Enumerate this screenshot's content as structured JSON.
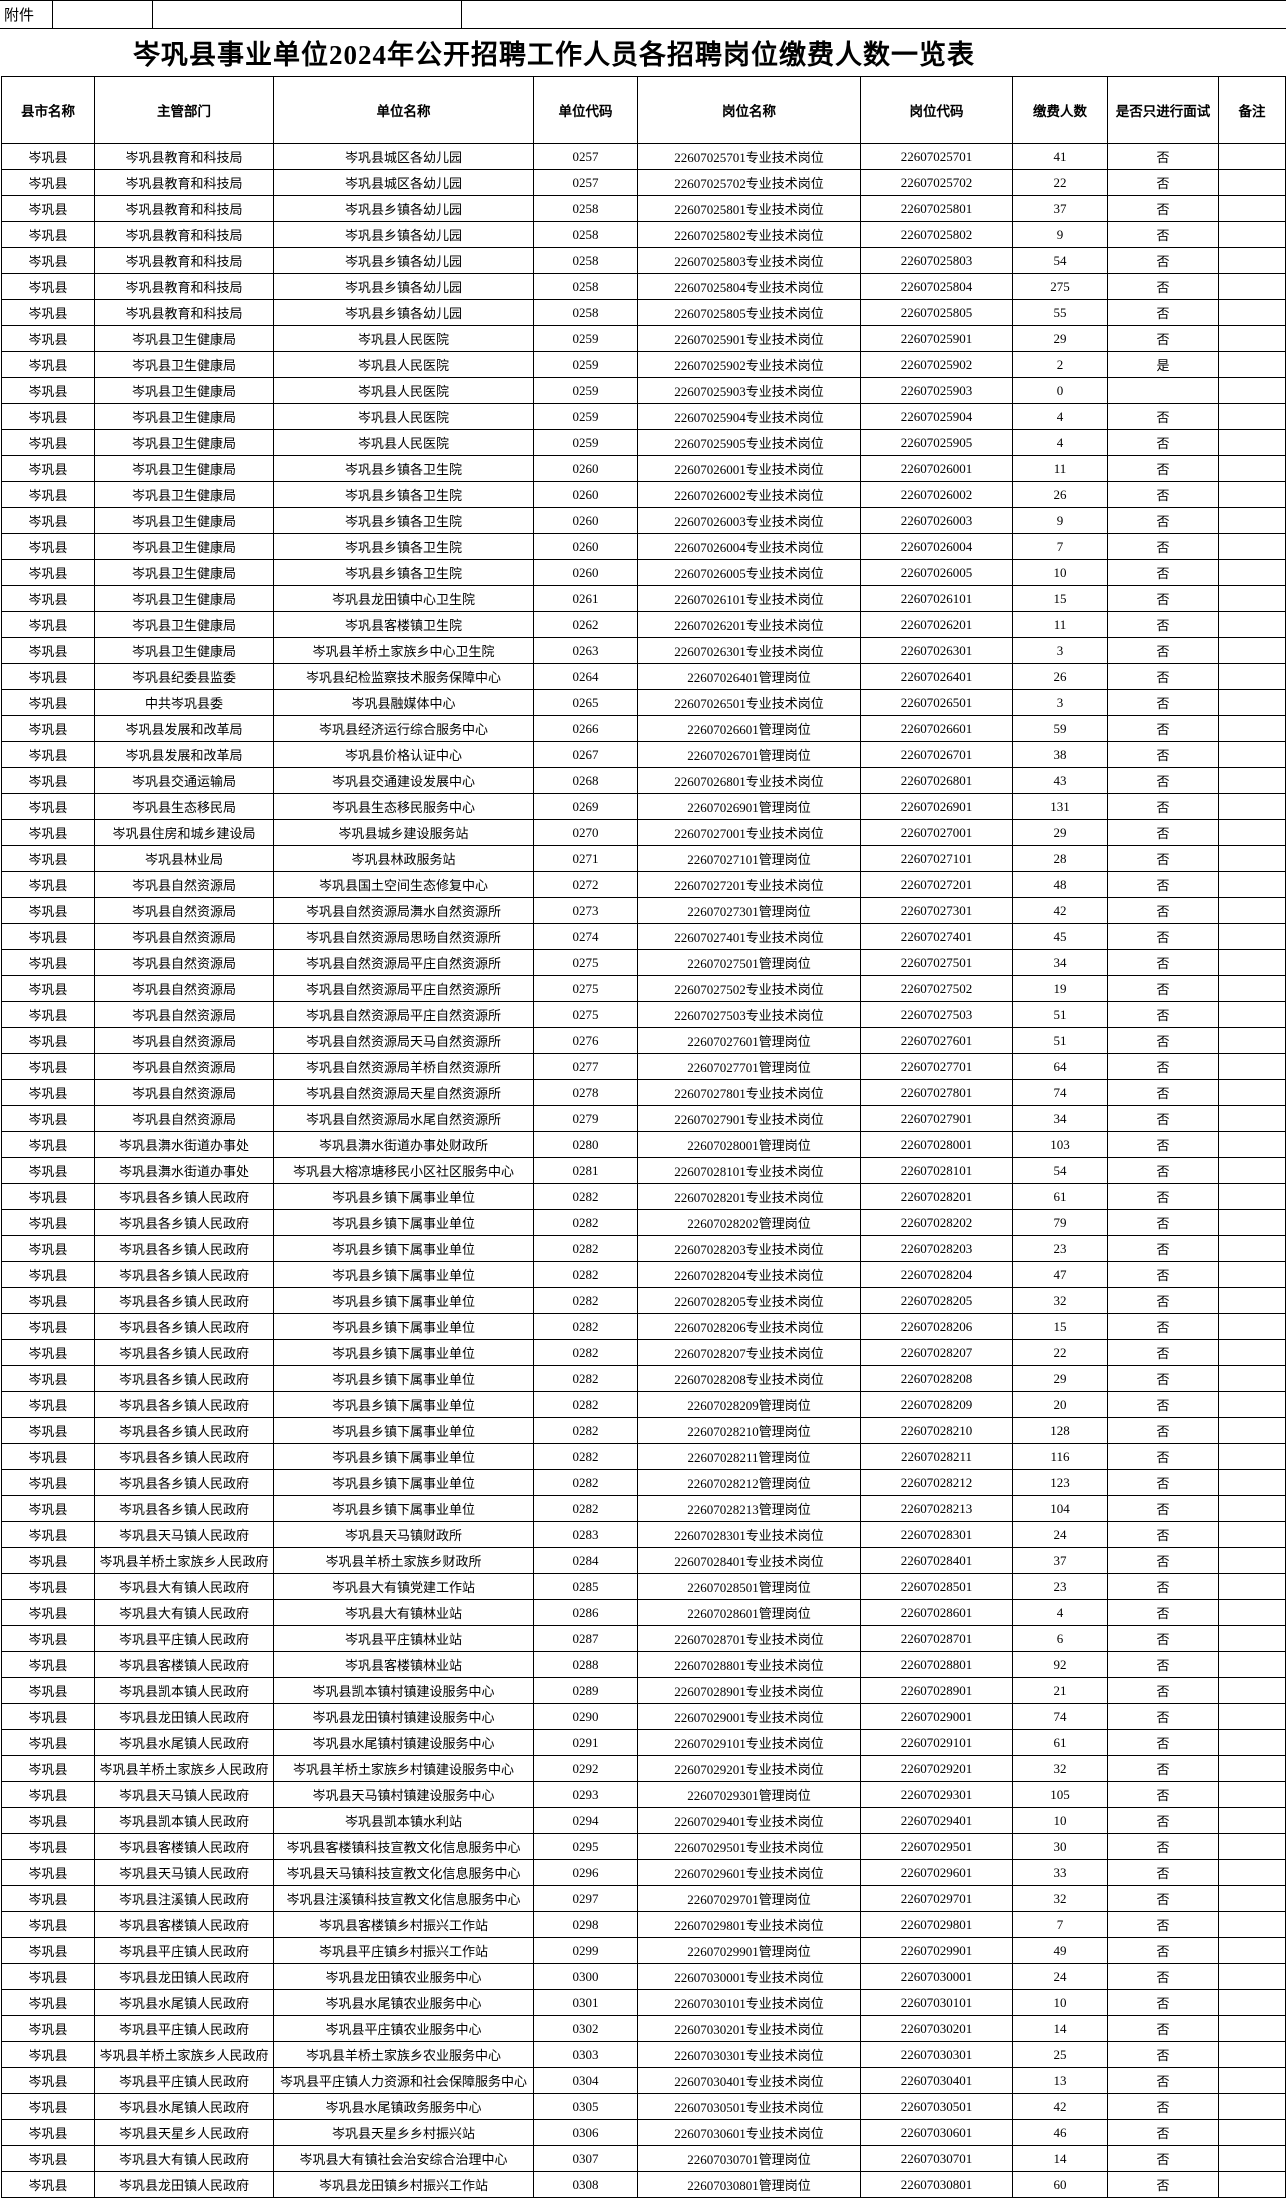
{
  "attachment_label": "附件",
  "title": "岑巩县事业单位2024年公开招聘工作人员各招聘岗位缴费人数一览表",
  "table": {
    "headers": [
      "县市名称",
      "主管部门",
      "单位名称",
      "单位代码",
      "岗位名称",
      "岗位代码",
      "缴费人数",
      "是否只进行面试",
      "备注"
    ],
    "rows": [
      [
        "岑巩县",
        "岑巩县教育和科技局",
        "岑巩县城区各幼儿园",
        "0257",
        "22607025701专业技术岗位",
        "22607025701",
        "41",
        "否",
        ""
      ],
      [
        "岑巩县",
        "岑巩县教育和科技局",
        "岑巩县城区各幼儿园",
        "0257",
        "22607025702专业技术岗位",
        "22607025702",
        "22",
        "否",
        ""
      ],
      [
        "岑巩县",
        "岑巩县教育和科技局",
        "岑巩县乡镇各幼儿园",
        "0258",
        "22607025801专业技术岗位",
        "22607025801",
        "37",
        "否",
        ""
      ],
      [
        "岑巩县",
        "岑巩县教育和科技局",
        "岑巩县乡镇各幼儿园",
        "0258",
        "22607025802专业技术岗位",
        "22607025802",
        "9",
        "否",
        ""
      ],
      [
        "岑巩县",
        "岑巩县教育和科技局",
        "岑巩县乡镇各幼儿园",
        "0258",
        "22607025803专业技术岗位",
        "22607025803",
        "54",
        "否",
        ""
      ],
      [
        "岑巩县",
        "岑巩县教育和科技局",
        "岑巩县乡镇各幼儿园",
        "0258",
        "22607025804专业技术岗位",
        "22607025804",
        "275",
        "否",
        ""
      ],
      [
        "岑巩县",
        "岑巩县教育和科技局",
        "岑巩县乡镇各幼儿园",
        "0258",
        "22607025805专业技术岗位",
        "22607025805",
        "55",
        "否",
        ""
      ],
      [
        "岑巩县",
        "岑巩县卫生健康局",
        "岑巩县人民医院",
        "0259",
        "22607025901专业技术岗位",
        "22607025901",
        "29",
        "否",
        ""
      ],
      [
        "岑巩县",
        "岑巩县卫生健康局",
        "岑巩县人民医院",
        "0259",
        "22607025902专业技术岗位",
        "22607025902",
        "2",
        "是",
        ""
      ],
      [
        "岑巩县",
        "岑巩县卫生健康局",
        "岑巩县人民医院",
        "0259",
        "22607025903专业技术岗位",
        "22607025903",
        "0",
        "",
        ""
      ],
      [
        "岑巩县",
        "岑巩县卫生健康局",
        "岑巩县人民医院",
        "0259",
        "22607025904专业技术岗位",
        "22607025904",
        "4",
        "否",
        ""
      ],
      [
        "岑巩县",
        "岑巩县卫生健康局",
        "岑巩县人民医院",
        "0259",
        "22607025905专业技术岗位",
        "22607025905",
        "4",
        "否",
        ""
      ],
      [
        "岑巩县",
        "岑巩县卫生健康局",
        "岑巩县乡镇各卫生院",
        "0260",
        "22607026001专业技术岗位",
        "22607026001",
        "11",
        "否",
        ""
      ],
      [
        "岑巩县",
        "岑巩县卫生健康局",
        "岑巩县乡镇各卫生院",
        "0260",
        "22607026002专业技术岗位",
        "22607026002",
        "26",
        "否",
        ""
      ],
      [
        "岑巩县",
        "岑巩县卫生健康局",
        "岑巩县乡镇各卫生院",
        "0260",
        "22607026003专业技术岗位",
        "22607026003",
        "9",
        "否",
        ""
      ],
      [
        "岑巩县",
        "岑巩县卫生健康局",
        "岑巩县乡镇各卫生院",
        "0260",
        "22607026004专业技术岗位",
        "22607026004",
        "7",
        "否",
        ""
      ],
      [
        "岑巩县",
        "岑巩县卫生健康局",
        "岑巩县乡镇各卫生院",
        "0260",
        "22607026005专业技术岗位",
        "22607026005",
        "10",
        "否",
        ""
      ],
      [
        "岑巩县",
        "岑巩县卫生健康局",
        "岑巩县龙田镇中心卫生院",
        "0261",
        "22607026101专业技术岗位",
        "22607026101",
        "15",
        "否",
        ""
      ],
      [
        "岑巩县",
        "岑巩县卫生健康局",
        "岑巩县客楼镇卫生院",
        "0262",
        "22607026201专业技术岗位",
        "22607026201",
        "11",
        "否",
        ""
      ],
      [
        "岑巩县",
        "岑巩县卫生健康局",
        "岑巩县羊桥土家族乡中心卫生院",
        "0263",
        "22607026301专业技术岗位",
        "22607026301",
        "3",
        "否",
        ""
      ],
      [
        "岑巩县",
        "岑巩县纪委县监委",
        "岑巩县纪检监察技术服务保障中心",
        "0264",
        "22607026401管理岗位",
        "22607026401",
        "26",
        "否",
        ""
      ],
      [
        "岑巩县",
        "中共岑巩县委",
        "岑巩县融媒体中心",
        "0265",
        "22607026501专业技术岗位",
        "22607026501",
        "3",
        "否",
        ""
      ],
      [
        "岑巩县",
        "岑巩县发展和改革局",
        "岑巩县经济运行综合服务中心",
        "0266",
        "22607026601管理岗位",
        "22607026601",
        "59",
        "否",
        ""
      ],
      [
        "岑巩县",
        "岑巩县发展和改革局",
        "岑巩县价格认证中心",
        "0267",
        "22607026701管理岗位",
        "22607026701",
        "38",
        "否",
        ""
      ],
      [
        "岑巩县",
        "岑巩县交通运输局",
        "岑巩县交通建设发展中心",
        "0268",
        "22607026801专业技术岗位",
        "22607026801",
        "43",
        "否",
        ""
      ],
      [
        "岑巩县",
        "岑巩县生态移民局",
        "岑巩县生态移民服务中心",
        "0269",
        "22607026901管理岗位",
        "22607026901",
        "131",
        "否",
        ""
      ],
      [
        "岑巩县",
        "岑巩县住房和城乡建设局",
        "岑巩县城乡建设服务站",
        "0270",
        "22607027001专业技术岗位",
        "22607027001",
        "29",
        "否",
        ""
      ],
      [
        "岑巩县",
        "岑巩县林业局",
        "岑巩县林政服务站",
        "0271",
        "22607027101管理岗位",
        "22607027101",
        "28",
        "否",
        ""
      ],
      [
        "岑巩县",
        "岑巩县自然资源局",
        "岑巩县国土空间生态修复中心",
        "0272",
        "22607027201专业技术岗位",
        "22607027201",
        "48",
        "否",
        ""
      ],
      [
        "岑巩县",
        "岑巩县自然资源局",
        "岑巩县自然资源局㵲水自然资源所",
        "0273",
        "22607027301管理岗位",
        "22607027301",
        "42",
        "否",
        ""
      ],
      [
        "岑巩县",
        "岑巩县自然资源局",
        "岑巩县自然资源局思旸自然资源所",
        "0274",
        "22607027401专业技术岗位",
        "22607027401",
        "45",
        "否",
        ""
      ],
      [
        "岑巩县",
        "岑巩县自然资源局",
        "岑巩县自然资源局平庄自然资源所",
        "0275",
        "22607027501管理岗位",
        "22607027501",
        "34",
        "否",
        ""
      ],
      [
        "岑巩县",
        "岑巩县自然资源局",
        "岑巩县自然资源局平庄自然资源所",
        "0275",
        "22607027502专业技术岗位",
        "22607027502",
        "19",
        "否",
        ""
      ],
      [
        "岑巩县",
        "岑巩县自然资源局",
        "岑巩县自然资源局平庄自然资源所",
        "0275",
        "22607027503专业技术岗位",
        "22607027503",
        "51",
        "否",
        ""
      ],
      [
        "岑巩县",
        "岑巩县自然资源局",
        "岑巩县自然资源局天马自然资源所",
        "0276",
        "22607027601管理岗位",
        "22607027601",
        "51",
        "否",
        ""
      ],
      [
        "岑巩县",
        "岑巩县自然资源局",
        "岑巩县自然资源局羊桥自然资源所",
        "0277",
        "22607027701管理岗位",
        "22607027701",
        "64",
        "否",
        ""
      ],
      [
        "岑巩县",
        "岑巩县自然资源局",
        "岑巩县自然资源局天星自然资源所",
        "0278",
        "22607027801专业技术岗位",
        "22607027801",
        "74",
        "否",
        ""
      ],
      [
        "岑巩县",
        "岑巩县自然资源局",
        "岑巩县自然资源局水尾自然资源所",
        "0279",
        "22607027901专业技术岗位",
        "22607027901",
        "34",
        "否",
        ""
      ],
      [
        "岑巩县",
        "岑巩县㵲水街道办事处",
        "岑巩县㵲水街道办事处财政所",
        "0280",
        "22607028001管理岗位",
        "22607028001",
        "103",
        "否",
        ""
      ],
      [
        "岑巩县",
        "岑巩县㵲水街道办事处",
        "岑巩县大榕凉塘移民小区社区服务中心",
        "0281",
        "22607028101专业技术岗位",
        "22607028101",
        "54",
        "否",
        ""
      ],
      [
        "岑巩县",
        "岑巩县各乡镇人民政府",
        "岑巩县乡镇下属事业单位",
        "0282",
        "22607028201专业技术岗位",
        "22607028201",
        "61",
        "否",
        ""
      ],
      [
        "岑巩县",
        "岑巩县各乡镇人民政府",
        "岑巩县乡镇下属事业单位",
        "0282",
        "22607028202管理岗位",
        "22607028202",
        "79",
        "否",
        ""
      ],
      [
        "岑巩县",
        "岑巩县各乡镇人民政府",
        "岑巩县乡镇下属事业单位",
        "0282",
        "22607028203专业技术岗位",
        "22607028203",
        "23",
        "否",
        ""
      ],
      [
        "岑巩县",
        "岑巩县各乡镇人民政府",
        "岑巩县乡镇下属事业单位",
        "0282",
        "22607028204专业技术岗位",
        "22607028204",
        "47",
        "否",
        ""
      ],
      [
        "岑巩县",
        "岑巩县各乡镇人民政府",
        "岑巩县乡镇下属事业单位",
        "0282",
        "22607028205专业技术岗位",
        "22607028205",
        "32",
        "否",
        ""
      ],
      [
        "岑巩县",
        "岑巩县各乡镇人民政府",
        "岑巩县乡镇下属事业单位",
        "0282",
        "22607028206专业技术岗位",
        "22607028206",
        "15",
        "否",
        ""
      ],
      [
        "岑巩县",
        "岑巩县各乡镇人民政府",
        "岑巩县乡镇下属事业单位",
        "0282",
        "22607028207专业技术岗位",
        "22607028207",
        "22",
        "否",
        ""
      ],
      [
        "岑巩县",
        "岑巩县各乡镇人民政府",
        "岑巩县乡镇下属事业单位",
        "0282",
        "22607028208专业技术岗位",
        "22607028208",
        "29",
        "否",
        ""
      ],
      [
        "岑巩县",
        "岑巩县各乡镇人民政府",
        "岑巩县乡镇下属事业单位",
        "0282",
        "22607028209管理岗位",
        "22607028209",
        "20",
        "否",
        ""
      ],
      [
        "岑巩县",
        "岑巩县各乡镇人民政府",
        "岑巩县乡镇下属事业单位",
        "0282",
        "22607028210管理岗位",
        "22607028210",
        "128",
        "否",
        ""
      ],
      [
        "岑巩县",
        "岑巩县各乡镇人民政府",
        "岑巩县乡镇下属事业单位",
        "0282",
        "22607028211管理岗位",
        "22607028211",
        "116",
        "否",
        ""
      ],
      [
        "岑巩县",
        "岑巩县各乡镇人民政府",
        "岑巩县乡镇下属事业单位",
        "0282",
        "22607028212管理岗位",
        "22607028212",
        "123",
        "否",
        ""
      ],
      [
        "岑巩县",
        "岑巩县各乡镇人民政府",
        "岑巩县乡镇下属事业单位",
        "0282",
        "22607028213管理岗位",
        "22607028213",
        "104",
        "否",
        ""
      ],
      [
        "岑巩县",
        "岑巩县天马镇人民政府",
        "岑巩县天马镇财政所",
        "0283",
        "22607028301专业技术岗位",
        "22607028301",
        "24",
        "否",
        ""
      ],
      [
        "岑巩县",
        "岑巩县羊桥土家族乡人民政府",
        "岑巩县羊桥土家族乡财政所",
        "0284",
        "22607028401专业技术岗位",
        "22607028401",
        "37",
        "否",
        ""
      ],
      [
        "岑巩县",
        "岑巩县大有镇人民政府",
        "岑巩县大有镇党建工作站",
        "0285",
        "22607028501管理岗位",
        "22607028501",
        "23",
        "否",
        ""
      ],
      [
        "岑巩县",
        "岑巩县大有镇人民政府",
        "岑巩县大有镇林业站",
        "0286",
        "22607028601管理岗位",
        "22607028601",
        "4",
        "否",
        ""
      ],
      [
        "岑巩县",
        "岑巩县平庄镇人民政府",
        "岑巩县平庄镇林业站",
        "0287",
        "22607028701专业技术岗位",
        "22607028701",
        "6",
        "否",
        ""
      ],
      [
        "岑巩县",
        "岑巩县客楼镇人民政府",
        "岑巩县客楼镇林业站",
        "0288",
        "22607028801专业技术岗位",
        "22607028801",
        "92",
        "否",
        ""
      ],
      [
        "岑巩县",
        "岑巩县凯本镇人民政府",
        "岑巩县凯本镇村镇建设服务中心",
        "0289",
        "22607028901专业技术岗位",
        "22607028901",
        "21",
        "否",
        ""
      ],
      [
        "岑巩县",
        "岑巩县龙田镇人民政府",
        "岑巩县龙田镇村镇建设服务中心",
        "0290",
        "22607029001专业技术岗位",
        "22607029001",
        "74",
        "否",
        ""
      ],
      [
        "岑巩县",
        "岑巩县水尾镇人民政府",
        "岑巩县水尾镇村镇建设服务中心",
        "0291",
        "22607029101专业技术岗位",
        "22607029101",
        "61",
        "否",
        ""
      ],
      [
        "岑巩县",
        "岑巩县羊桥土家族乡人民政府",
        "岑巩县羊桥土家族乡村镇建设服务中心",
        "0292",
        "22607029201专业技术岗位",
        "22607029201",
        "32",
        "否",
        ""
      ],
      [
        "岑巩县",
        "岑巩县天马镇人民政府",
        "岑巩县天马镇村镇建设服务中心",
        "0293",
        "22607029301管理岗位",
        "22607029301",
        "105",
        "否",
        ""
      ],
      [
        "岑巩县",
        "岑巩县凯本镇人民政府",
        "岑巩县凯本镇水利站",
        "0294",
        "22607029401专业技术岗位",
        "22607029401",
        "10",
        "否",
        ""
      ],
      [
        "岑巩县",
        "岑巩县客楼镇人民政府",
        "岑巩县客楼镇科技宣教文化信息服务中心",
        "0295",
        "22607029501专业技术岗位",
        "22607029501",
        "30",
        "否",
        ""
      ],
      [
        "岑巩县",
        "岑巩县天马镇人民政府",
        "岑巩县天马镇科技宣教文化信息服务中心",
        "0296",
        "22607029601专业技术岗位",
        "22607029601",
        "33",
        "否",
        ""
      ],
      [
        "岑巩县",
        "岑巩县注溪镇人民政府",
        "岑巩县注溪镇科技宣教文化信息服务中心",
        "0297",
        "22607029701管理岗位",
        "22607029701",
        "32",
        "否",
        ""
      ],
      [
        "岑巩县",
        "岑巩县客楼镇人民政府",
        "岑巩县客楼镇乡村振兴工作站",
        "0298",
        "22607029801专业技术岗位",
        "22607029801",
        "7",
        "否",
        ""
      ],
      [
        "岑巩县",
        "岑巩县平庄镇人民政府",
        "岑巩县平庄镇乡村振兴工作站",
        "0299",
        "22607029901管理岗位",
        "22607029901",
        "49",
        "否",
        ""
      ],
      [
        "岑巩县",
        "岑巩县龙田镇人民政府",
        "岑巩县龙田镇农业服务中心",
        "0300",
        "22607030001专业技术岗位",
        "22607030001",
        "24",
        "否",
        ""
      ],
      [
        "岑巩县",
        "岑巩县水尾镇人民政府",
        "岑巩县水尾镇农业服务中心",
        "0301",
        "22607030101专业技术岗位",
        "22607030101",
        "10",
        "否",
        ""
      ],
      [
        "岑巩县",
        "岑巩县平庄镇人民政府",
        "岑巩县平庄镇农业服务中心",
        "0302",
        "22607030201专业技术岗位",
        "22607030201",
        "14",
        "否",
        ""
      ],
      [
        "岑巩县",
        "岑巩县羊桥土家族乡人民政府",
        "岑巩县羊桥土家族乡农业服务中心",
        "0303",
        "22607030301专业技术岗位",
        "22607030301",
        "25",
        "否",
        ""
      ],
      [
        "岑巩县",
        "岑巩县平庄镇人民政府",
        "岑巩县平庄镇人力资源和社会保障服务中心",
        "0304",
        "22607030401专业技术岗位",
        "22607030401",
        "13",
        "否",
        ""
      ],
      [
        "岑巩县",
        "岑巩县水尾镇人民政府",
        "岑巩县水尾镇政务服务中心",
        "0305",
        "22607030501专业技术岗位",
        "22607030501",
        "42",
        "否",
        ""
      ],
      [
        "岑巩县",
        "岑巩县天星乡人民政府",
        "岑巩县天星乡乡村振兴站",
        "0306",
        "22607030601专业技术岗位",
        "22607030601",
        "46",
        "否",
        ""
      ],
      [
        "岑巩县",
        "岑巩县大有镇人民政府",
        "岑巩县大有镇社会治安综合治理中心",
        "0307",
        "22607030701管理岗位",
        "22607030701",
        "14",
        "否",
        ""
      ],
      [
        "岑巩县",
        "岑巩县龙田镇人民政府",
        "岑巩县龙田镇乡村振兴工作站",
        "0308",
        "22607030801管理岗位",
        "22607030801",
        "60",
        "否",
        ""
      ]
    ]
  }
}
